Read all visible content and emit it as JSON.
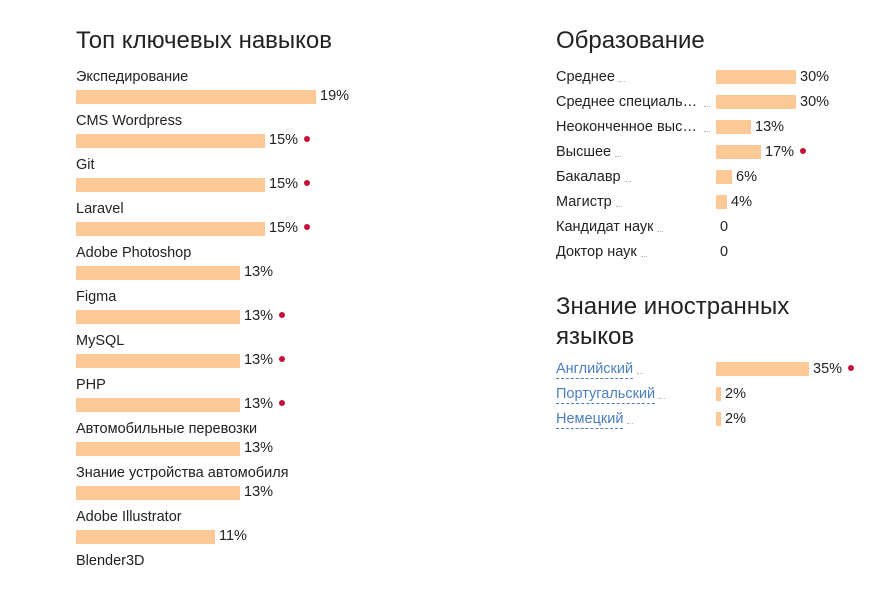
{
  "skills": {
    "title": "Топ ключевых навыков",
    "items": [
      {
        "label": "Экспедирование",
        "pct": "19%",
        "value": 19,
        "dot": false
      },
      {
        "label": "CMS Wordpress",
        "pct": "15%",
        "value": 15,
        "dot": true
      },
      {
        "label": "Git",
        "pct": "15%",
        "value": 15,
        "dot": true
      },
      {
        "label": "Laravel",
        "pct": "15%",
        "value": 15,
        "dot": true
      },
      {
        "label": "Adobe Photoshop",
        "pct": "13%",
        "value": 13,
        "dot": false
      },
      {
        "label": "Figma",
        "pct": "13%",
        "value": 13,
        "dot": true
      },
      {
        "label": "MySQL",
        "pct": "13%",
        "value": 13,
        "dot": true
      },
      {
        "label": "PHP",
        "pct": "13%",
        "value": 13,
        "dot": true
      },
      {
        "label": "Автомобильные перевозки",
        "pct": "13%",
        "value": 13,
        "dot": false
      },
      {
        "label": "Знание устройства автомобиля",
        "pct": "13%",
        "value": 13,
        "dot": false
      },
      {
        "label": "Adobe Illustrator",
        "pct": "11%",
        "value": 11,
        "dot": false
      },
      {
        "label": "Blender3D",
        "pct": "",
        "value": 0,
        "dot": false
      }
    ]
  },
  "education": {
    "title": "Образование",
    "items": [
      {
        "label": "Среднее",
        "pct": "30%",
        "value": 30,
        "dot": false
      },
      {
        "label": "Среднее специальное",
        "pct": "30%",
        "value": 30,
        "dot": false
      },
      {
        "label": "Неоконченное высшее",
        "pct": "13%",
        "value": 13,
        "dot": false
      },
      {
        "label": "Высшее",
        "pct": "17%",
        "value": 17,
        "dot": true
      },
      {
        "label": "Бакалавр",
        "pct": "6%",
        "value": 6,
        "dot": false
      },
      {
        "label": "Магистр",
        "pct": "4%",
        "value": 4,
        "dot": false
      },
      {
        "label": "Кандидат наук",
        "pct": "0",
        "value": 0,
        "dot": false
      },
      {
        "label": "Доктор наук",
        "pct": "0",
        "value": 0,
        "dot": false
      }
    ]
  },
  "languages": {
    "title": "Знание иностранных языков",
    "items": [
      {
        "label": "Английский",
        "pct": "35%",
        "value": 35,
        "dot": true
      },
      {
        "label": "Португальский",
        "pct": "2%",
        "value": 2,
        "dot": false
      },
      {
        "label": "Немецкий",
        "pct": "2%",
        "value": 2,
        "dot": false
      }
    ]
  },
  "colors": {
    "bar": "#fcc996",
    "dot": "#c4123a",
    "link": "#4a7fc0",
    "text": "#222222"
  },
  "chart_data": [
    {
      "type": "bar",
      "title": "Топ ключевых навыков",
      "categories": [
        "Экспедирование",
        "CMS Wordpress",
        "Git",
        "Laravel",
        "Adobe Photoshop",
        "Figma",
        "MySQL",
        "PHP",
        "Автомобильные перевозки",
        "Знание устройства автомобиля",
        "Adobe Illustrator"
      ],
      "values": [
        19,
        15,
        15,
        15,
        13,
        13,
        13,
        13,
        13,
        13,
        11
      ],
      "orientation": "horizontal",
      "unit": "%"
    },
    {
      "type": "bar",
      "title": "Образование",
      "categories": [
        "Среднее",
        "Среднее специальное",
        "Неоконченное высшее",
        "Высшее",
        "Бакалавр",
        "Магистр",
        "Кандидат наук",
        "Доктор наук"
      ],
      "values": [
        30,
        30,
        13,
        17,
        6,
        4,
        0,
        0
      ],
      "orientation": "horizontal",
      "unit": "%"
    },
    {
      "type": "bar",
      "title": "Знание иностранных языков",
      "categories": [
        "Английский",
        "Португальский",
        "Немецкий"
      ],
      "values": [
        35,
        2,
        2
      ],
      "orientation": "horizontal",
      "unit": "%"
    }
  ]
}
